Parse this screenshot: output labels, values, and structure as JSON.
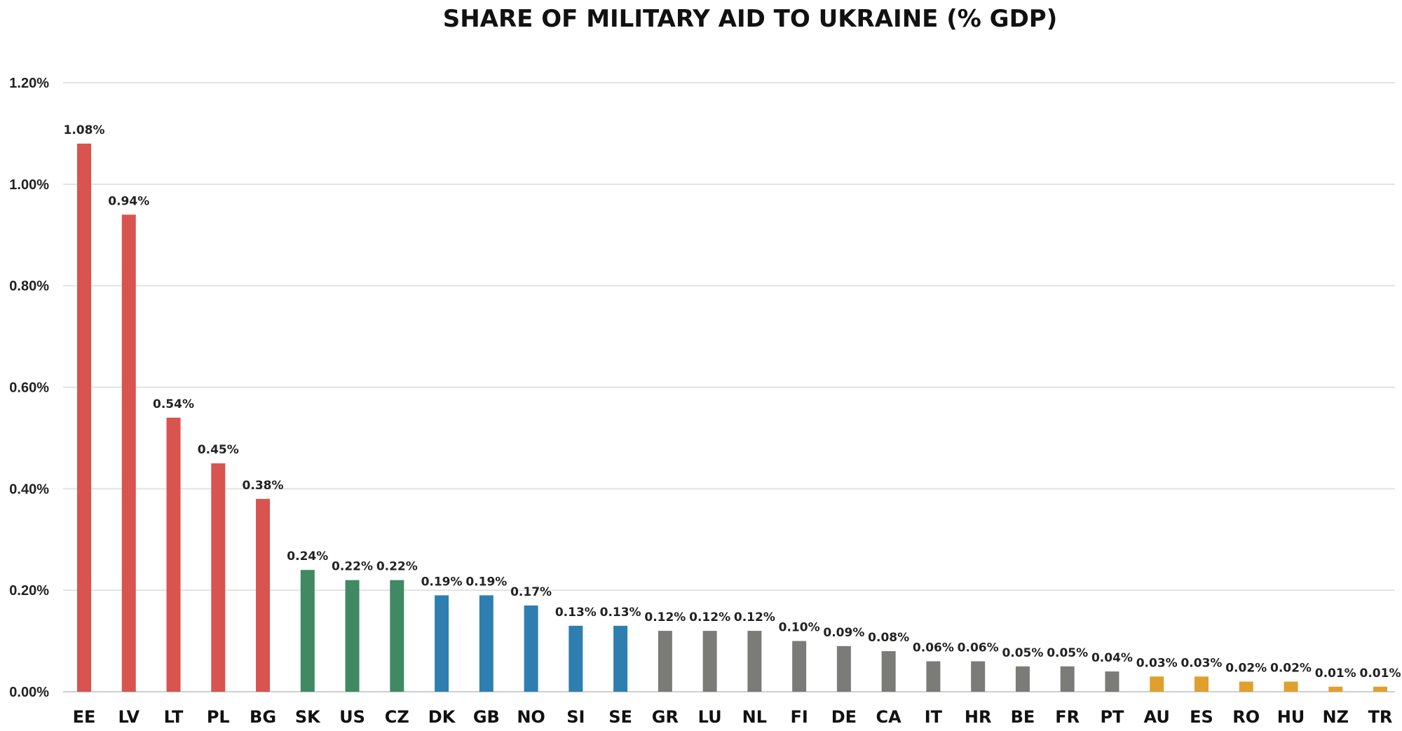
{
  "chart_data": {
    "type": "bar",
    "title": "SHARE OF MILITARY AID TO UKRAINE (% GDP)",
    "xlabel": "",
    "ylabel": "",
    "ylim": [
      0,
      1.2
    ],
    "y_ticks": [
      "0.00%",
      "0.20%",
      "0.40%",
      "0.60%",
      "0.80%",
      "1.00%",
      "1.20%"
    ],
    "grid": true,
    "categories": [
      "EE",
      "LV",
      "LT",
      "PL",
      "BG",
      "SK",
      "US",
      "CZ",
      "DK",
      "GB",
      "NO",
      "SI",
      "SE",
      "GR",
      "LU",
      "NL",
      "FI",
      "DE",
      "CA",
      "IT",
      "HR",
      "BE",
      "FR",
      "PT",
      "AU",
      "ES",
      "RO",
      "HU",
      "NZ",
      "TR"
    ],
    "values": [
      1.08,
      0.94,
      0.54,
      0.45,
      0.38,
      0.24,
      0.22,
      0.22,
      0.19,
      0.19,
      0.17,
      0.13,
      0.13,
      0.12,
      0.12,
      0.12,
      0.1,
      0.09,
      0.08,
      0.06,
      0.06,
      0.05,
      0.05,
      0.04,
      0.03,
      0.03,
      0.02,
      0.02,
      0.01,
      0.01
    ],
    "data_labels": [
      "1.08%",
      "0.94%",
      "0.54%",
      "0.45%",
      "0.38%",
      "0.24%",
      "0.22%",
      "0.22%",
      "0.19%",
      "0.19%",
      "0.17%",
      "0.13%",
      "0.13%",
      "0.12%",
      "0.12%",
      "0.12%",
      "0.10%",
      "0.09%",
      "0.08%",
      "0.06%",
      "0.06%",
      "0.05%",
      "0.05%",
      "0.04%",
      "0.03%",
      "0.03%",
      "0.02%",
      "0.02%",
      "0.01%",
      "0.01%"
    ],
    "bar_colors": [
      "#d9534f",
      "#d9534f",
      "#d9534f",
      "#d9534f",
      "#d9534f",
      "#3f8a63",
      "#3f8a63",
      "#3f8a63",
      "#2e7fb0",
      "#2e7fb0",
      "#2e7fb0",
      "#2e7fb0",
      "#2e7fb0",
      "#7b7b78",
      "#7b7b78",
      "#7b7b78",
      "#7b7b78",
      "#7b7b78",
      "#7b7b78",
      "#7b7b78",
      "#7b7b78",
      "#7b7b78",
      "#7b7b78",
      "#7b7b78",
      "#e0a02d",
      "#e0a02d",
      "#e0a02d",
      "#e0a02d",
      "#e0a02d",
      "#e0a02d"
    ]
  }
}
